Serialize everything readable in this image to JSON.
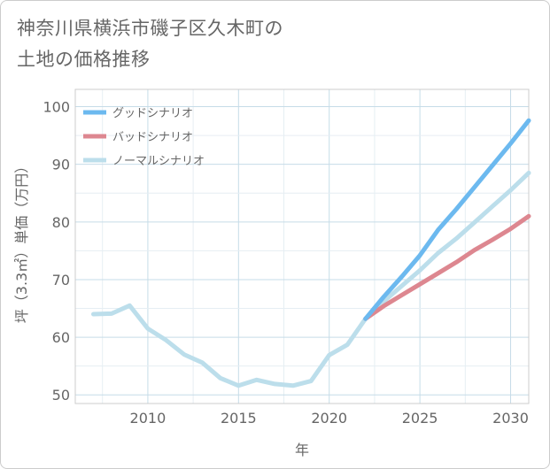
{
  "title_lines": [
    "神奈川県横浜市磯子区久木町の",
    "土地の価格推移"
  ],
  "chart_data": {
    "type": "line",
    "xlabel": "年",
    "ylabel": "坪（3.3㎡）単価（万円）",
    "xlim": [
      2006,
      2031
    ],
    "ylim": [
      48.5,
      103
    ],
    "xticks": [
      2010,
      2015,
      2020,
      2025,
      2030
    ],
    "yticks": [
      50,
      60,
      70,
      80,
      90,
      100
    ],
    "grid": true,
    "legend_position": "top-left",
    "series": [
      {
        "name": "グッドシナリオ",
        "color": "#6cb9ef",
        "x": [
          2022,
          2023,
          2024,
          2025,
          2026,
          2027,
          2028,
          2029,
          2030,
          2031
        ],
        "y": [
          63.2,
          67.0,
          70.5,
          74.2,
          78.6,
          82.2,
          86.0,
          89.8,
          93.6,
          97.6
        ]
      },
      {
        "name": "バッドシナリオ",
        "color": "#dd8790",
        "x": [
          2022,
          2023,
          2024,
          2025,
          2026,
          2027,
          2028,
          2029,
          2030,
          2031
        ],
        "y": [
          63.2,
          65.4,
          67.3,
          69.2,
          71.1,
          73.0,
          75.1,
          76.9,
          78.8,
          81.0
        ]
      },
      {
        "name": "ノーマルシナリオ",
        "color": "#bcdeeb",
        "x": [
          2007,
          2008,
          2009,
          2010,
          2011,
          2012,
          2013,
          2014,
          2015,
          2016,
          2017,
          2018,
          2019,
          2020,
          2021,
          2022,
          2023,
          2024,
          2025,
          2026,
          2027,
          2028,
          2029,
          2030,
          2031
        ],
        "y": [
          64.0,
          64.1,
          65.5,
          61.5,
          59.5,
          57.0,
          55.6,
          52.9,
          51.6,
          52.6,
          51.9,
          51.6,
          52.4,
          56.9,
          58.7,
          63.2,
          66.2,
          68.9,
          71.6,
          74.6,
          77.1,
          79.9,
          82.7,
          85.5,
          88.5
        ]
      }
    ]
  }
}
